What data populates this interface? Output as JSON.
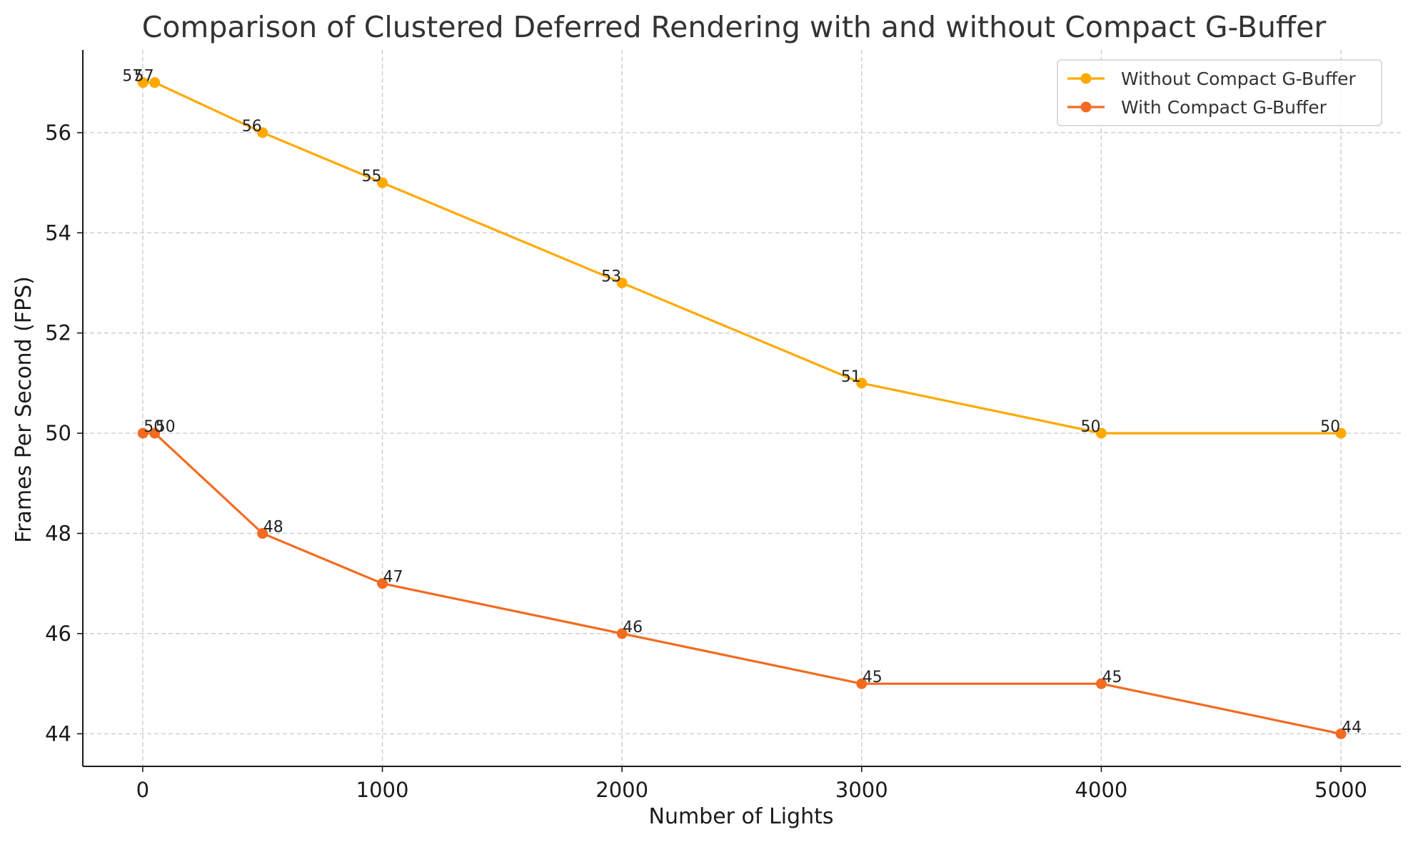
{
  "chart_data": {
    "type": "line",
    "title": "Comparison of Clustered Deferred Rendering with and without Compact G-Buffer",
    "xlabel": "Number of Lights",
    "ylabel": "Frames Per Second (FPS)",
    "x": [
      1,
      50,
      500,
      1000,
      2000,
      3000,
      4000,
      5000
    ],
    "xlim": [
      -250,
      5250
    ],
    "ylim": [
      43.35,
      57.65
    ],
    "xticks": [
      0,
      1000,
      2000,
      3000,
      4000,
      5000
    ],
    "yticks": [
      44,
      46,
      48,
      50,
      52,
      54,
      56
    ],
    "grid": true,
    "legend_position": "top-right",
    "series": [
      {
        "name": "Without Compact G-Buffer",
        "color": "#ffa900",
        "values": [
          57,
          57,
          56,
          55,
          53,
          51,
          50,
          50
        ],
        "label_anchor": "end"
      },
      {
        "name": "With Compact G-Buffer",
        "color": "#f26b21",
        "values": [
          50,
          50,
          48,
          47,
          46,
          45,
          45,
          44
        ],
        "label_anchor": "start"
      }
    ]
  }
}
